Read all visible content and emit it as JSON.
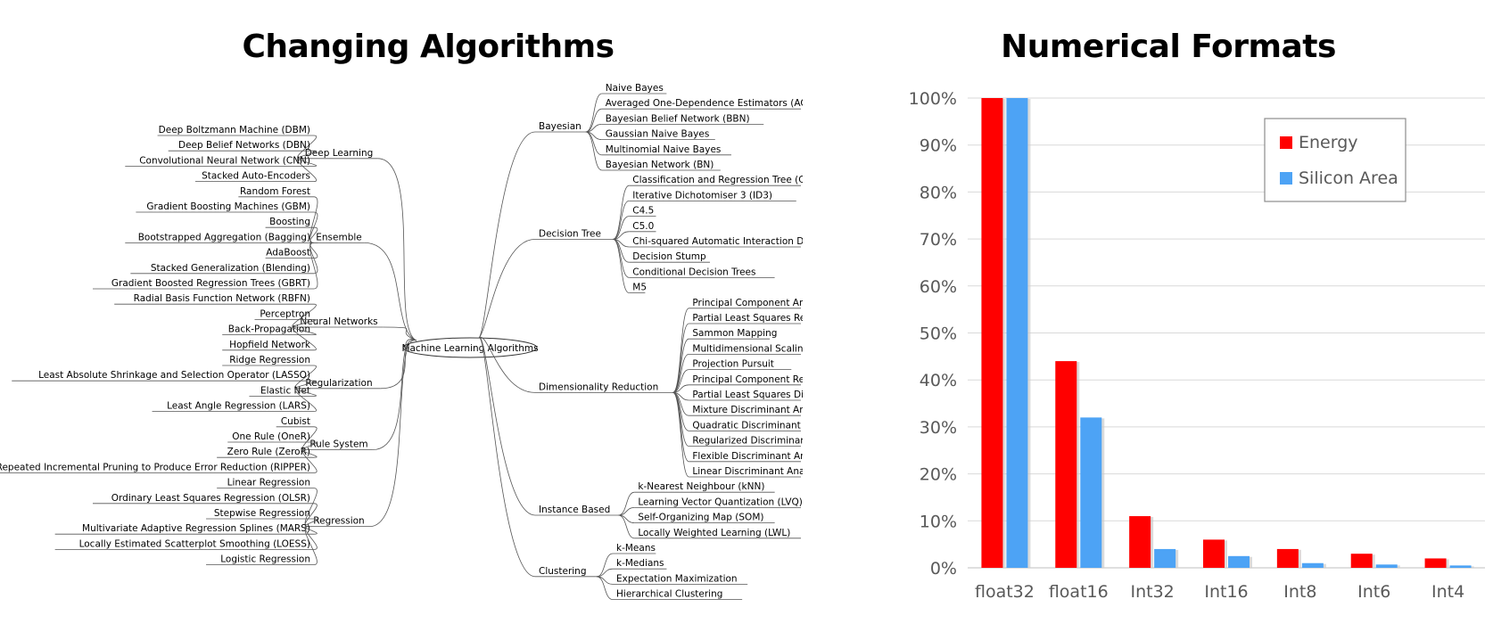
{
  "panels": {
    "left_title": "Changing Algorithms",
    "right_title": "Numerical Formats"
  },
  "mindmap": {
    "center": "Machine Learning Algorithms",
    "left_groups": [
      {
        "name": "Deep Learning",
        "items": [
          "Deep Boltzmann Machine (DBM)",
          "Deep Belief Networks (DBN)",
          "Convolutional Neural Network (CNN)",
          "Stacked Auto-Encoders"
        ]
      },
      {
        "name": "Ensemble",
        "items": [
          "Random Forest",
          "Gradient Boosting Machines (GBM)",
          "Boosting",
          "Bootstrapped Aggregation (Bagging)",
          "AdaBoost",
          "Stacked Generalization (Blending)",
          "Gradient Boosted Regression Trees (GBRT)"
        ]
      },
      {
        "name": "Neural Networks",
        "items": [
          "Radial Basis Function Network (RBFN)",
          "Perceptron",
          "Back-Propagation",
          "Hopfield Network"
        ]
      },
      {
        "name": "Regularization",
        "items": [
          "Ridge Regression",
          "Least Absolute Shrinkage and Selection Operator (LASSO)",
          "Elastic Net",
          "Least Angle Regression (LARS)"
        ]
      },
      {
        "name": "Rule System",
        "items": [
          "Cubist",
          "One Rule (OneR)",
          "Zero Rule (ZeroR)",
          "Repeated Incremental Pruning to Produce Error Reduction (RIPPER)"
        ]
      },
      {
        "name": "Regression",
        "items": [
          "Linear Regression",
          "Ordinary Least Squares Regression (OLSR)",
          "Stepwise Regression",
          "Multivariate Adaptive Regression Splines (MARS)",
          "Locally Estimated Scatterplot Smoothing (LOESS)",
          "Logistic Regression"
        ]
      }
    ],
    "right_groups": [
      {
        "name": "Bayesian",
        "items": [
          "Naive Bayes",
          "Averaged One-Dependence Estimators (AODE)",
          "Bayesian Belief Network (BBN)",
          "Gaussian Naive Bayes",
          "Multinomial Naive Bayes",
          "Bayesian Network (BN)"
        ]
      },
      {
        "name": "Decision Tree",
        "items": [
          "Classification and Regression Tree (CART)",
          "Iterative Dichotomiser 3 (ID3)",
          "C4.5",
          "C5.0",
          "Chi-squared Automatic Interaction Detection (CHAID)",
          "Decision Stump",
          "Conditional Decision Trees",
          "M5"
        ]
      },
      {
        "name": "Dimensionality Reduction",
        "items": [
          "Principal Component Analysis (PCA)",
          "Partial Least Squares Regression (PLSR",
          "Sammon Mapping",
          "Multidimensional Scaling (MDS)",
          "Projection Pursuit",
          "Principal Component Regression (PCR)",
          "Partial Least Squares Discriminant Analysis",
          "Mixture Discriminant Analysis (MDA)",
          "Quadratic Discriminant Analysis (QDA)",
          "Regularized Discriminant Analysis (RDA)",
          "Flexible Discriminant Analysis (FDA)",
          "Linear Discriminant Analysis (LDA)"
        ]
      },
      {
        "name": "Instance Based",
        "items": [
          "k-Nearest Neighbour (kNN)",
          "Learning Vector Quantization (LVQ)",
          "Self-Organizing Map (SOM)",
          "Locally Weighted Learning (LWL)"
        ]
      },
      {
        "name": "Clustering",
        "items": [
          "k-Means",
          "k-Medians",
          "Expectation Maximization",
          "Hierarchical Clustering"
        ]
      }
    ]
  },
  "chart_data": {
    "type": "bar",
    "title": "Numerical Formats",
    "categories": [
      "float32",
      "float16",
      "Int32",
      "Int16",
      "Int8",
      "Int6",
      "Int4"
    ],
    "series": [
      {
        "name": "Energy",
        "color": "#ff0000",
        "values": [
          100,
          44,
          11,
          6,
          4,
          3,
          2
        ]
      },
      {
        "name": "Silicon Area",
        "color": "#4da3f5",
        "values": [
          100,
          32,
          4,
          2.5,
          1,
          0.7,
          0.5
        ]
      }
    ],
    "ylim": [
      0,
      100
    ],
    "yticks": [
      "0%",
      "10%",
      "20%",
      "30%",
      "40%",
      "50%",
      "60%",
      "70%",
      "80%",
      "90%",
      "100%"
    ],
    "grid": true,
    "legend_position": "top-right"
  }
}
